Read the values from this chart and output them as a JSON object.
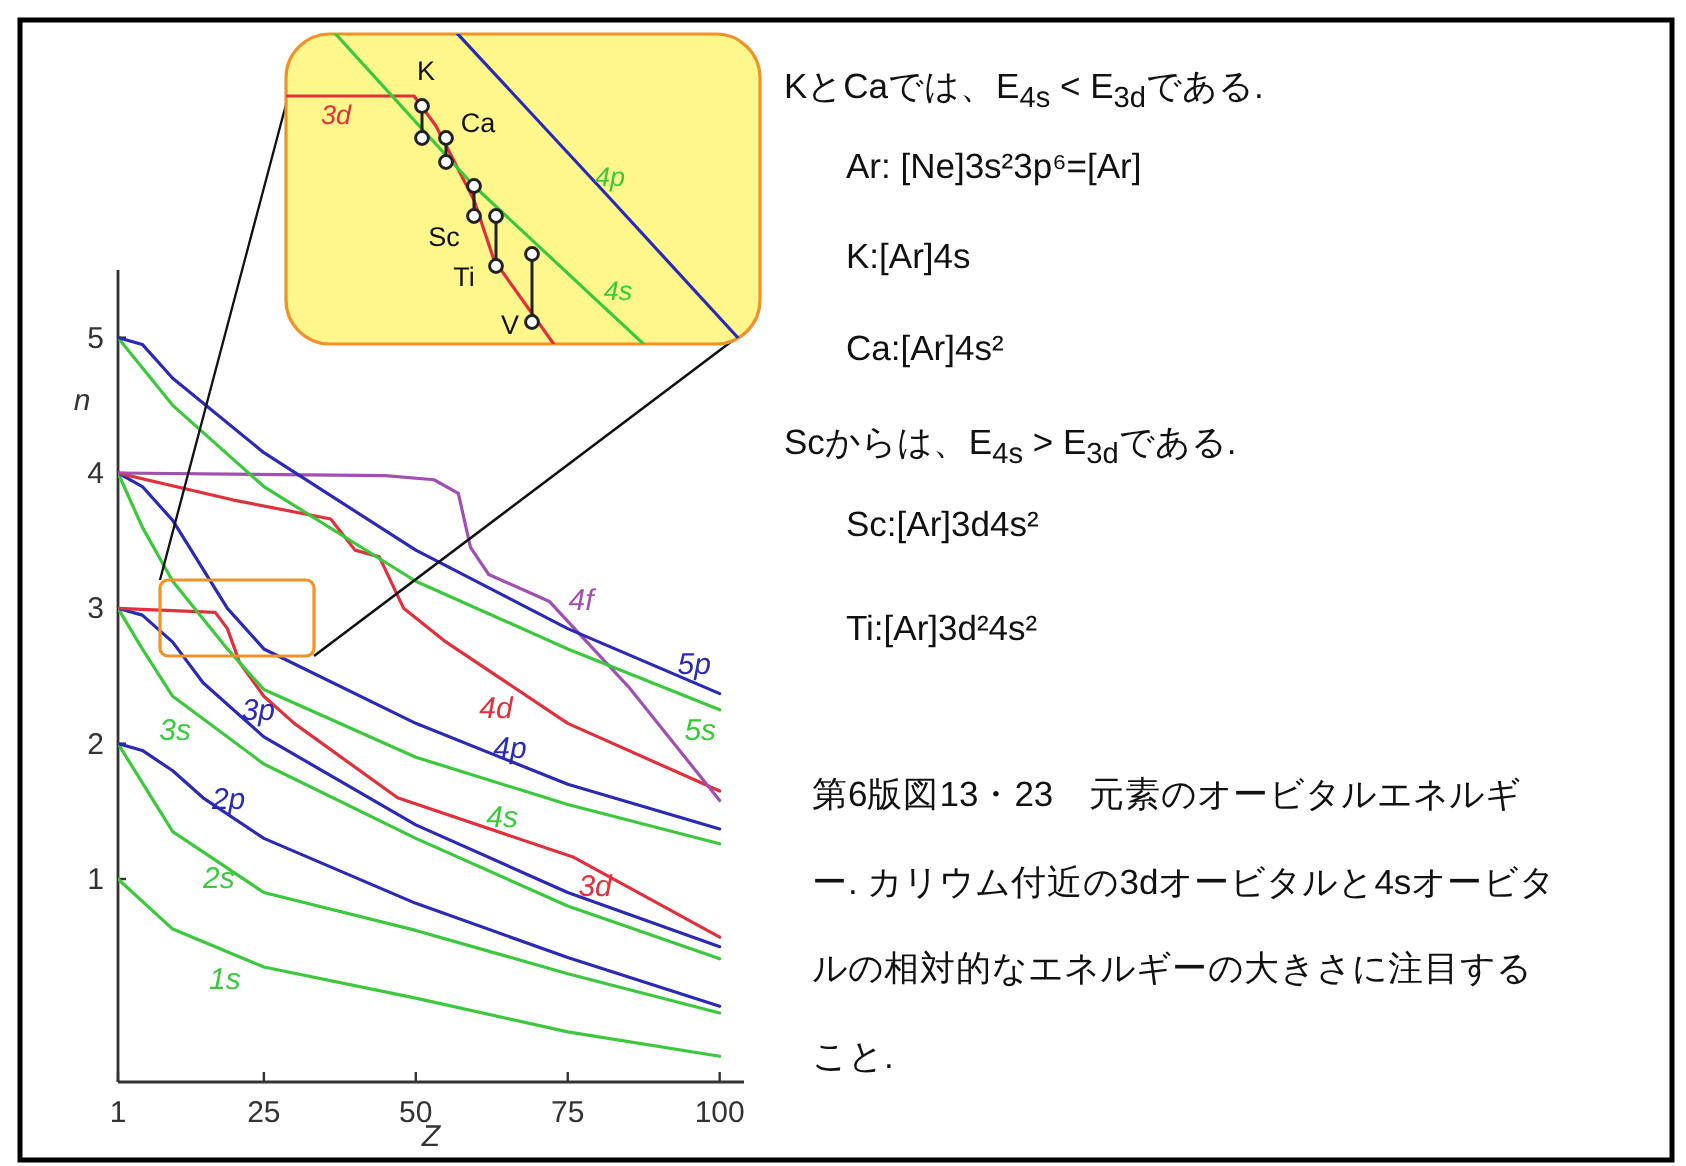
{
  "chart_data": [
    {
      "type": "line",
      "xlabel": "Z",
      "ylabel": "n",
      "xlim": [
        1,
        104
      ],
      "ylim": [
        -0.5,
        5.5
      ],
      "xticks": [
        1,
        25,
        50,
        75,
        100
      ],
      "yticks": [
        1,
        2,
        3,
        4,
        5
      ],
      "grid": false,
      "series": [
        {
          "name": "1s",
          "color": "#3cc83c",
          "x": [
            1,
            10,
            25,
            50,
            75,
            100
          ],
          "values": [
            1,
            0.63,
            0.35,
            0.12,
            -0.13,
            -0.31
          ]
        },
        {
          "name": "2s",
          "color": "#3cc83c",
          "x": [
            1,
            10,
            25,
            50,
            75,
            100
          ],
          "values": [
            2,
            1.35,
            0.9,
            0.62,
            0.3,
            0.01
          ]
        },
        {
          "name": "2p",
          "color": "#2a2ab4",
          "x": [
            1,
            5,
            10,
            15,
            25,
            50,
            75,
            100
          ],
          "values": [
            2,
            1.95,
            1.8,
            1.6,
            1.3,
            0.82,
            0.42,
            0.06
          ]
        },
        {
          "name": "3s",
          "color": "#3cc83c",
          "x": [
            1,
            5,
            10,
            25,
            50,
            75,
            100
          ],
          "values": [
            3,
            2.7,
            2.35,
            1.85,
            1.3,
            0.8,
            0.41
          ]
        },
        {
          "name": "3p",
          "color": "#2a2ab4",
          "x": [
            1,
            5,
            10,
            15,
            25,
            50,
            75,
            100
          ],
          "values": [
            3,
            2.95,
            2.75,
            2.45,
            2.05,
            1.4,
            0.9,
            0.5
          ]
        },
        {
          "name": "3d",
          "color": "#e0303c",
          "x": [
            1,
            17,
            19,
            21,
            25,
            30,
            47,
            76,
            100
          ],
          "values": [
            3,
            2.97,
            2.85,
            2.6,
            2.35,
            2.15,
            1.6,
            1.16,
            0.57
          ]
        },
        {
          "name": "4s",
          "color": "#3cc83c",
          "x": [
            1,
            5,
            10,
            19,
            25,
            50,
            75,
            100
          ],
          "values": [
            4,
            3.6,
            3.2,
            2.7,
            2.4,
            1.9,
            1.55,
            1.26
          ]
        },
        {
          "name": "4p",
          "color": "#2a2ab4",
          "x": [
            1,
            5,
            10,
            19,
            25,
            50,
            75,
            100
          ],
          "values": [
            4,
            3.9,
            3.65,
            3.0,
            2.7,
            2.15,
            1.7,
            1.37
          ]
        },
        {
          "name": "4d",
          "color": "#e0303c",
          "x": [
            1,
            20,
            36,
            40,
            44,
            48,
            55,
            75,
            100
          ],
          "values": [
            4,
            3.8,
            3.66,
            3.43,
            3.38,
            3.0,
            2.75,
            2.15,
            1.65
          ]
        },
        {
          "name": "4f",
          "color": "#a050b0",
          "x": [
            1,
            45,
            53,
            57,
            59,
            62,
            72,
            85,
            100
          ],
          "values": [
            4,
            3.98,
            3.95,
            3.85,
            3.45,
            3.25,
            3.05,
            2.42,
            1.58
          ]
        },
        {
          "name": "5s",
          "color": "#3cc83c",
          "x": [
            1,
            10,
            25,
            50,
            75,
            100
          ],
          "values": [
            5,
            4.5,
            3.9,
            3.2,
            2.7,
            2.25
          ]
        },
        {
          "name": "5p",
          "color": "#2a2ab4",
          "x": [
            1,
            5,
            10,
            25,
            50,
            75,
            100
          ],
          "values": [
            5,
            4.95,
            4.7,
            4.15,
            3.43,
            2.85,
            2.37
          ]
        }
      ]
    },
    {
      "type": "other",
      "annotations": [
        "3d",
        "4p",
        "4s",
        "K",
        "Ca",
        "Sc",
        "Ti",
        "V"
      ]
    },
    {
      "type": "other",
      "annotations": [
        "KとCaでは、E$_{4s}$ < E$_{3d}$である.",
        "Ar: [Ne]3s²3p⁶=[Ar]",
        "K:[Ar]4s",
        "Ca:[Ar]4s²",
        "Scからは、E$_{4s}$ > E$_{3d}$である.",
        "Sc:[Ar]3d4s²",
        "Ti:[Ar]3d²4s²",
        "第6版図13・23　元素のオービタルエネルギー. カリウム付近の3dオービタルと4sオービタルの相対的なエネルギーの大きさに注目すること."
      ]
    }
  ]
}
